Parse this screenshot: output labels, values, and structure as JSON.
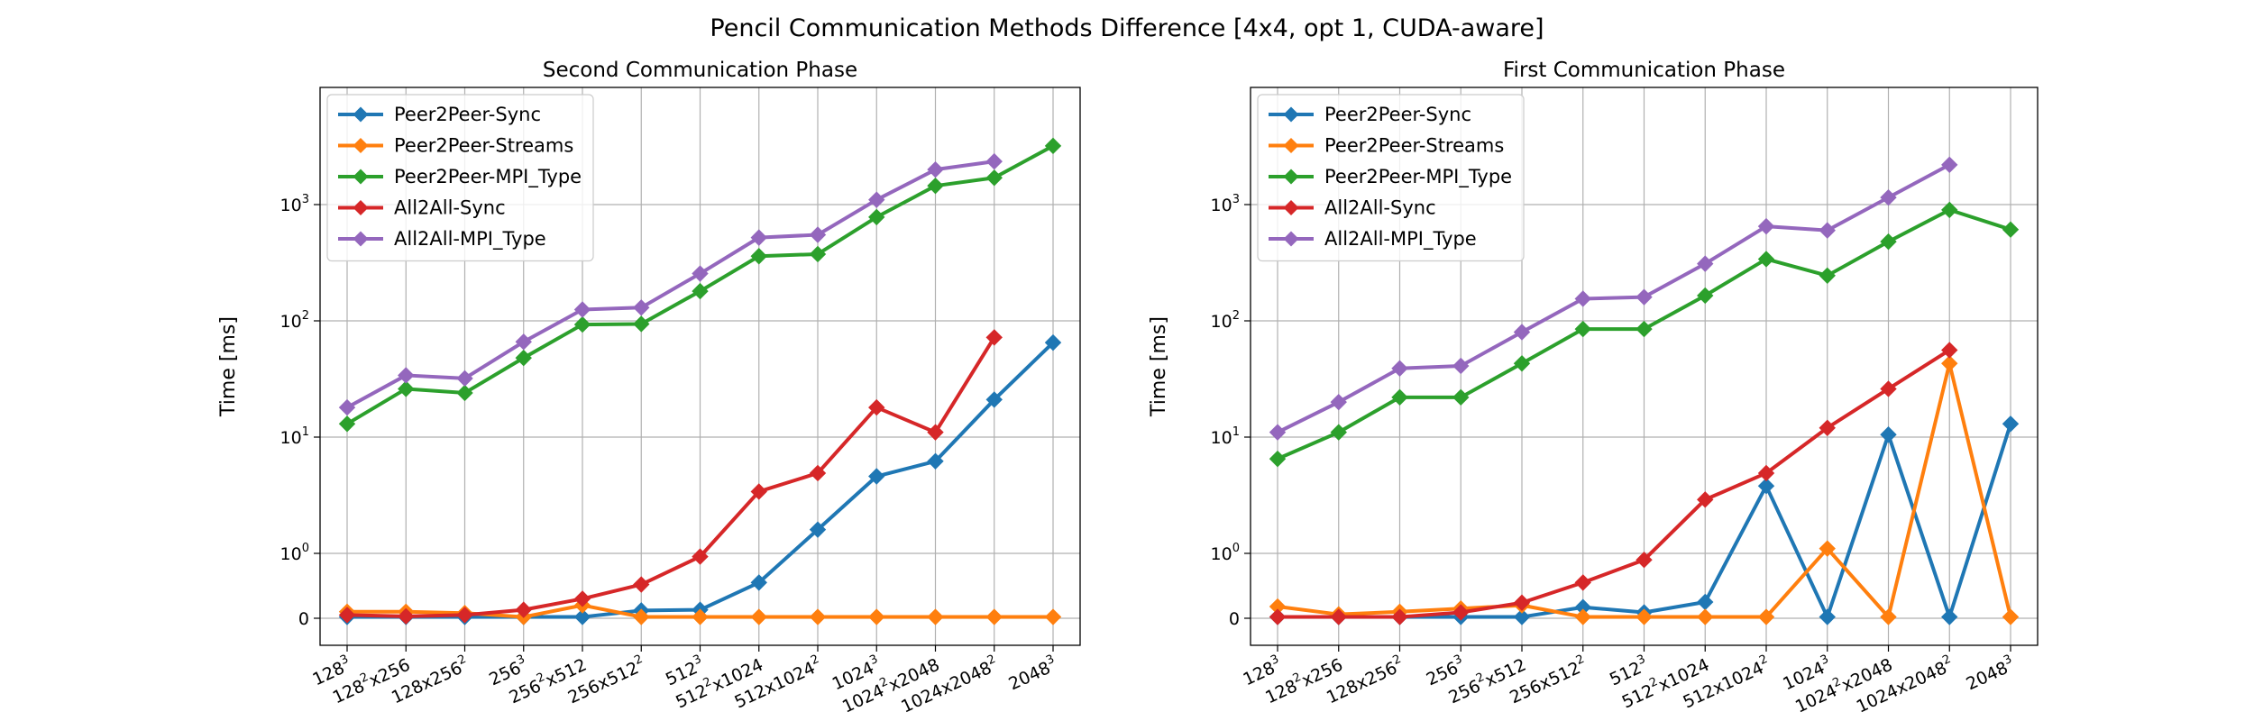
{
  "title": "Pencil Communication Methods Difference [4x4, opt 1, CUDA-aware]",
  "colors": {
    "Peer2Peer-Sync": "#1f77b4",
    "Peer2Peer-Streams": "#ff7f0e",
    "Peer2Peer-MPI_Type": "#2ca02c",
    "All2All-Sync": "#d62728",
    "All2All-MPI_Type": "#9467bd"
  },
  "chart_data": [
    {
      "type": "line",
      "title": "Second Communication Phase",
      "ylabel": "Time [ms]",
      "xlabel": "",
      "yscale": "symlog",
      "yticks": [
        "0",
        "10^0",
        "10^1",
        "10^2",
        "10^3"
      ],
      "grid": true,
      "legend_position": "top-left",
      "categories": [
        "128^3",
        "128^2x256",
        "128x256^2",
        "256^3",
        "256^2x512",
        "256x512^2",
        "512^3",
        "512^2x1024",
        "512x1024^2",
        "1024^3",
        "1024^2x2048",
        "1024x2048^2",
        "2048^3"
      ],
      "series": [
        {
          "name": "Peer2Peer-Sync",
          "values": [
            0.02,
            0.02,
            0.02,
            0.02,
            0.02,
            0.12,
            0.13,
            0.55,
            1.6,
            4.6,
            6.2,
            21,
            65
          ]
        },
        {
          "name": "Peer2Peer-Streams",
          "values": [
            0.1,
            0.1,
            0.08,
            0.02,
            0.2,
            0.02,
            0.02,
            0.02,
            0.02,
            0.02,
            0.02,
            0.02,
            0.02
          ]
        },
        {
          "name": "Peer2Peer-MPI_Type",
          "values": [
            13,
            26,
            24,
            48,
            93,
            94,
            180,
            360,
            375,
            780,
            1450,
            1700,
            3200
          ]
        },
        {
          "name": "All2All-Sync",
          "values": [
            0.05,
            0.03,
            0.05,
            0.13,
            0.3,
            0.52,
            0.95,
            3.4,
            4.9,
            18,
            11,
            72,
            null
          ]
        },
        {
          "name": "All2All-MPI_Type",
          "values": [
            18,
            34,
            32,
            66,
            125,
            130,
            255,
            520,
            550,
            1100,
            2000,
            2350,
            null
          ]
        }
      ]
    },
    {
      "type": "line",
      "title": "First Communication Phase",
      "ylabel": "Time [ms]",
      "xlabel": "",
      "yscale": "symlog",
      "yticks": [
        "0",
        "10^0",
        "10^1",
        "10^2",
        "10^3"
      ],
      "grid": true,
      "legend_position": "top-left",
      "categories": [
        "128^3",
        "128^2x256",
        "128x256^2",
        "256^3",
        "256^2x512",
        "256x512^2",
        "512^3",
        "512^2x1024",
        "512x1024^2",
        "1024^3",
        "1024^2x2048",
        "1024x2048^2",
        "2048^3"
      ],
      "series": [
        {
          "name": "Peer2Peer-Sync",
          "values": [
            0.02,
            0.02,
            0.02,
            0.02,
            0.02,
            0.17,
            0.09,
            0.25,
            3.8,
            0.02,
            10.5,
            0.02,
            13
          ]
        },
        {
          "name": "Peer2Peer-Streams",
          "values": [
            0.18,
            0.06,
            0.1,
            0.15,
            0.2,
            0.02,
            0.02,
            0.02,
            0.02,
            1.1,
            0.02,
            43,
            0.02
          ]
        },
        {
          "name": "Peer2Peer-MPI_Type",
          "values": [
            6.5,
            11,
            22,
            22,
            43,
            85,
            85,
            165,
            340,
            245,
            480,
            900,
            610
          ]
        },
        {
          "name": "All2All-Sync",
          "values": [
            0.02,
            0.02,
            0.02,
            0.09,
            0.24,
            0.55,
            0.9,
            2.9,
            4.9,
            12,
            26,
            56,
            null
          ]
        },
        {
          "name": "All2All-MPI_Type",
          "values": [
            11,
            20,
            39,
            41,
            80,
            155,
            160,
            310,
            650,
            600,
            1150,
            2200,
            null
          ]
        }
      ]
    }
  ]
}
